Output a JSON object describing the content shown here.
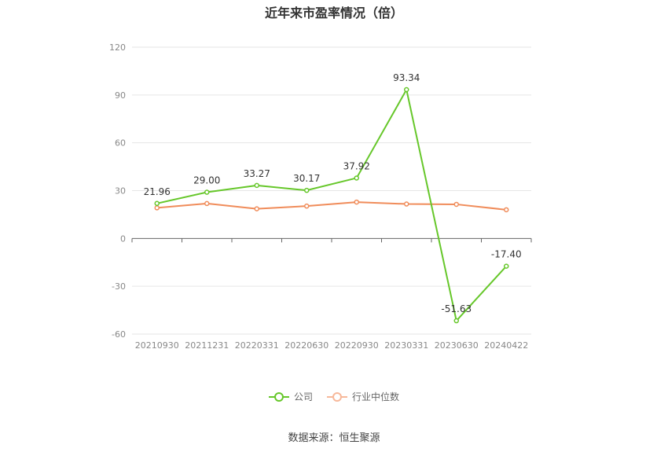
{
  "chart_data": {
    "type": "line",
    "title": "近年来市盈率情况（倍）",
    "categories": [
      "20210930",
      "20211231",
      "20220331",
      "20220630",
      "20220930",
      "20230331",
      "20230630",
      "20240422"
    ],
    "series": [
      {
        "name": "公司",
        "color": "#66c72a",
        "values": [
          21.96,
          29.0,
          33.27,
          30.17,
          37.92,
          93.34,
          -51.63,
          -17.4
        ],
        "labels": [
          "21.96",
          "29.00",
          "33.27",
          "30.17",
          "37.92",
          "93.34",
          "-51.63",
          "-17.40"
        ]
      },
      {
        "name": "行业中位数",
        "color": "#f08c5a",
        "values": [
          19.2,
          21.9,
          18.6,
          20.3,
          22.8,
          21.6,
          21.4,
          18.0
        ]
      }
    ],
    "yaxis": {
      "min": -60,
      "max": 120,
      "ticks": [
        120,
        90,
        60,
        30,
        0,
        -30,
        -60
      ],
      "tick_labels": [
        "120",
        "90",
        "60",
        "30",
        "0",
        "-30",
        "-60"
      ]
    },
    "grid": true,
    "legend_position": "bottom-center"
  },
  "source_text": "数据来源：恒生聚源"
}
